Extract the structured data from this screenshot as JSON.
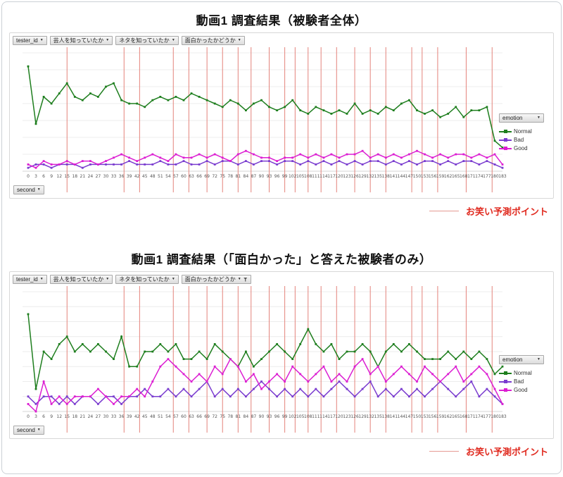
{
  "colors": {
    "normal": "#1e7e1e",
    "bad": "#7a3ccf",
    "good": "#dc1ed2",
    "event_line": "#e4837b",
    "annotation_text": "#e02b20",
    "annotation_line": "#e59a93",
    "grid": "#ececec",
    "axis": "#d4d4d4",
    "tick_text": "#555555"
  },
  "charts": [
    {
      "title": "動画1 調査結果（被験者全体）",
      "filters": [
        {
          "label": "tester_id",
          "filtered": false
        },
        {
          "label": "芸人を知っていたか",
          "filtered": false
        },
        {
          "label": "ネタを知っていたか",
          "filtered": false
        },
        {
          "label": "面白かったかどうか",
          "filtered": false
        }
      ],
      "axis_field": "second",
      "legend_field": "emotion",
      "annotation": "お笑い予測ポイント",
      "chart_data": {
        "type": "line",
        "xlabel": "second",
        "ylabel": "",
        "x": [
          0,
          3,
          6,
          9,
          12,
          15,
          18,
          21,
          24,
          27,
          30,
          33,
          36,
          39,
          42,
          45,
          48,
          51,
          54,
          57,
          60,
          63,
          66,
          69,
          72,
          75,
          78,
          81,
          84,
          87,
          90,
          93,
          96,
          99,
          102,
          105,
          108,
          111,
          114,
          117,
          120,
          123,
          126,
          129,
          132,
          135,
          138,
          141,
          144,
          147,
          150,
          153,
          156,
          159,
          162,
          165,
          168,
          171,
          174,
          177,
          180,
          183
        ],
        "ylim": [
          0,
          35
        ],
        "gridline_step": 5,
        "y_tick_labels_visible": false,
        "legend_position": "right",
        "series": [
          {
            "name": "Normal",
            "color": "#1e7e1e",
            "values": [
              31,
              14,
              22,
              20,
              23,
              26,
              22,
              21,
              23,
              22,
              25,
              26,
              21,
              20,
              20,
              19,
              21,
              22,
              21,
              22,
              21,
              23,
              22,
              21,
              20,
              19,
              21,
              20,
              18,
              20,
              21,
              19,
              18,
              19,
              21,
              18,
              17,
              19,
              18,
              17,
              18,
              17,
              20,
              17,
              18,
              17,
              19,
              18,
              20,
              21,
              18,
              17,
              18,
              16,
              17,
              19,
              16,
              18,
              18,
              19,
              9,
              7
            ]
          },
          {
            "name": "Bad",
            "color": "#7a3ccf",
            "values": [
              1,
              2,
              2,
              1,
              2,
              2,
              2,
              1,
              2,
              2,
              2,
              2,
              2,
              3,
              2,
              2,
              2,
              3,
              2,
              2,
              3,
              2,
              2,
              3,
              2,
              3,
              3,
              2,
              3,
              2,
              3,
              3,
              2,
              3,
              3,
              2,
              3,
              2,
              3,
              2,
              3,
              2,
              3,
              2,
              3,
              3,
              2,
              3,
              2,
              3,
              2,
              3,
              3,
              2,
              3,
              2,
              3,
              3,
              2,
              3,
              2,
              1
            ]
          },
          {
            "name": "Good",
            "color": "#dc1ed2",
            "values": [
              2,
              1,
              3,
              2,
              2,
              3,
              2,
              3,
              3,
              2,
              3,
              4,
              5,
              4,
              3,
              4,
              5,
              4,
              3,
              5,
              4,
              4,
              5,
              4,
              5,
              4,
              3,
              5,
              6,
              5,
              4,
              4,
              3,
              4,
              4,
              5,
              4,
              5,
              4,
              5,
              4,
              5,
              5,
              6,
              4,
              5,
              4,
              5,
              4,
              5,
              6,
              5,
              4,
              5,
              4,
              5,
              5,
              4,
              5,
              4,
              5,
              2
            ]
          }
        ],
        "event_lines": {
          "label": "お笑い予測ポイント",
          "color": "#e4837b",
          "x_values": [
            15,
            37,
            43,
            56,
            62,
            69,
            75,
            81,
            86,
            93,
            99,
            103,
            108,
            113,
            119,
            126,
            132,
            138,
            148,
            152,
            158,
            169,
            179
          ]
        }
      }
    },
    {
      "title": "動画1 調査結果（「面白かった」と答えた被験者のみ）",
      "filters": [
        {
          "label": "tester_id",
          "filtered": false
        },
        {
          "label": "芸人を知っていたか",
          "filtered": false
        },
        {
          "label": "ネタを知っていたか",
          "filtered": false
        },
        {
          "label": "面白かったかどうか",
          "filtered": true
        }
      ],
      "axis_field": "second",
      "legend_field": "emotion",
      "annotation": "お笑い予測ポイント",
      "chart_data": {
        "type": "line",
        "xlabel": "second",
        "ylabel": "",
        "x": [
          0,
          3,
          6,
          9,
          12,
          15,
          18,
          21,
          24,
          27,
          30,
          33,
          36,
          39,
          42,
          45,
          48,
          51,
          54,
          57,
          60,
          63,
          66,
          69,
          72,
          75,
          78,
          81,
          84,
          87,
          90,
          93,
          96,
          99,
          102,
          105,
          108,
          111,
          114,
          117,
          120,
          123,
          126,
          129,
          132,
          135,
          138,
          141,
          144,
          147,
          150,
          153,
          156,
          159,
          162,
          165,
          168,
          171,
          174,
          177,
          180,
          183
        ],
        "ylim": [
          0,
          16
        ],
        "gridline_step": 2,
        "y_tick_labels_visible": false,
        "legend_position": "right",
        "series": [
          {
            "name": "Normal",
            "color": "#1e7e1e",
            "values": [
              13,
              3,
              8,
              7,
              9,
              10,
              8,
              9,
              8,
              9,
              8,
              7,
              10,
              6,
              6,
              8,
              8,
              9,
              8,
              9,
              7,
              7,
              8,
              7,
              9,
              8,
              7,
              6,
              8,
              6,
              7,
              8,
              9,
              8,
              7,
              9,
              11,
              9,
              8,
              9,
              7,
              8,
              8,
              9,
              8,
              6,
              8,
              9,
              8,
              9,
              8,
              7,
              7,
              7,
              8,
              7,
              8,
              7,
              8,
              7,
              5,
              6
            ]
          },
          {
            "name": "Bad",
            "color": "#7a3ccf",
            "values": [
              2,
              1,
              2,
              2,
              1,
              2,
              1,
              2,
              2,
              1,
              2,
              2,
              1,
              2,
              2,
              3,
              2,
              2,
              3,
              2,
              3,
              2,
              3,
              4,
              2,
              3,
              2,
              3,
              2,
              3,
              4,
              3,
              2,
              3,
              2,
              3,
              2,
              3,
              2,
              3,
              4,
              3,
              2,
              3,
              4,
              2,
              3,
              2,
              3,
              2,
              3,
              2,
              3,
              4,
              3,
              2,
              3,
              4,
              2,
              3,
              2,
              1
            ]
          },
          {
            "name": "Good",
            "color": "#dc1ed2",
            "values": [
              1,
              0,
              4,
              1,
              2,
              1,
              2,
              2,
              2,
              3,
              2,
              1,
              2,
              2,
              3,
              2,
              4,
              6,
              7,
              6,
              5,
              4,
              5,
              4,
              6,
              5,
              7,
              6,
              4,
              5,
              3,
              4,
              5,
              4,
              6,
              5,
              4,
              5,
              6,
              4,
              5,
              4,
              6,
              7,
              5,
              6,
              4,
              5,
              6,
              5,
              4,
              6,
              5,
              4,
              5,
              6,
              4,
              5,
              6,
              5,
              3,
              1
            ]
          }
        ],
        "event_lines": {
          "label": "お笑い予測ポイント",
          "color": "#e4837b",
          "x_values": [
            15,
            37,
            43,
            56,
            62,
            69,
            75,
            81,
            86,
            93,
            99,
            103,
            108,
            113,
            119,
            126,
            132,
            138,
            148,
            152,
            158,
            169,
            179
          ]
        }
      }
    }
  ]
}
